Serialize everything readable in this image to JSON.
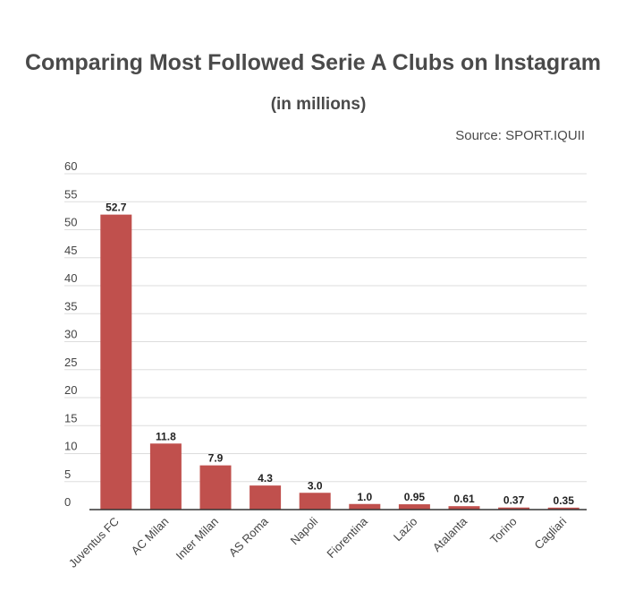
{
  "header": {
    "title": "Comparing Most Followed Serie A Clubs on Instagram",
    "subtitle": "(in millions)",
    "source": "Source: SPORT.IQUII"
  },
  "chart_data": {
    "type": "bar",
    "title": "Comparing Most Followed Serie A Clubs on Instagram",
    "subtitle": "(in millions)",
    "xlabel": "",
    "ylabel": "",
    "categories": [
      "Juventus FC",
      "AC Milan",
      "Inter Milan",
      "AS Roma",
      "Napoli",
      "Fiorentina",
      "Lazio",
      "Atalanta",
      "Torino",
      "Cagliari"
    ],
    "values": [
      52.7,
      11.8,
      7.9,
      4.3,
      3.0,
      1.0,
      0.95,
      0.61,
      0.37,
      0.35
    ],
    "value_labels": [
      "52.7",
      "11.8",
      "7.9",
      "4.3",
      "3.0",
      "1.0",
      "0.95",
      "0.61",
      "0.37",
      "0.35"
    ],
    "yticks": [
      0,
      5,
      10,
      15,
      20,
      25,
      30,
      35,
      40,
      45,
      50,
      55,
      60
    ],
    "ylim": [
      0,
      60
    ],
    "grid": true,
    "legend": "none",
    "bar_color": "#c0504d"
  }
}
